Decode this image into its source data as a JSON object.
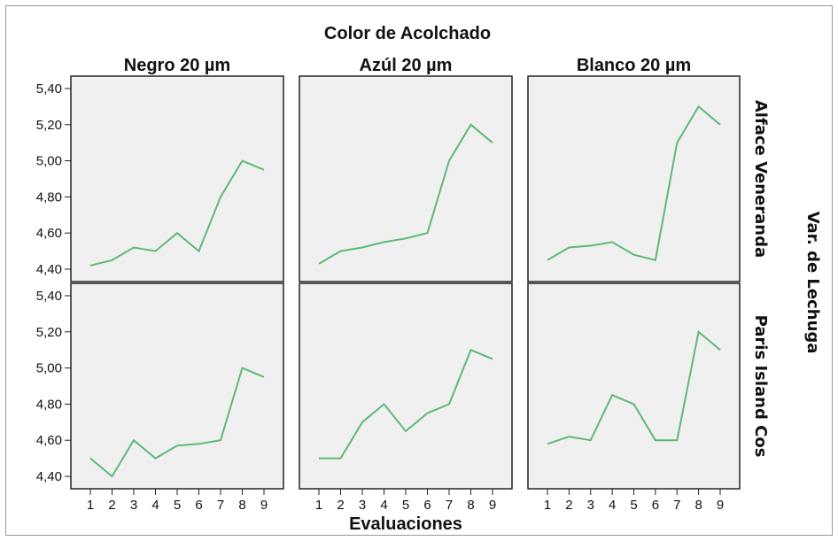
{
  "chart_data": {
    "type": "line",
    "title": "Color de Acolchado",
    "xlabel": "Evaluaciones",
    "right_label": "Var. de Lechuga",
    "columns": [
      "Negro 20 µm",
      "Azúl 20 µm",
      "Blanco 20 µm"
    ],
    "rows": [
      "Alface Veneranda",
      "Paris Island Cos"
    ],
    "x": [
      1,
      2,
      3,
      4,
      5,
      6,
      7,
      8,
      9
    ],
    "x_tick_labels": [
      "1",
      "2",
      "3",
      "4",
      "5",
      "6",
      "7",
      "8",
      "9"
    ],
    "ylim": [
      4.4,
      5.4
    ],
    "y_ticks": [
      4.4,
      4.6,
      4.8,
      5.0,
      5.2,
      5.4
    ],
    "y_tick_labels": [
      "4,40",
      "4,60",
      "4,80",
      "5,00",
      "5,20",
      "5,40"
    ],
    "grid": false,
    "line_color": "#5fb878",
    "panel_background": "#f0f0f0",
    "panels": [
      {
        "row": "Alface Veneranda",
        "column": "Negro 20 µm",
        "values": [
          4.42,
          4.45,
          4.52,
          4.5,
          4.6,
          4.5,
          4.8,
          5.0,
          4.95
        ]
      },
      {
        "row": "Alface Veneranda",
        "column": "Azúl 20 µm",
        "values": [
          4.43,
          4.5,
          4.52,
          4.55,
          4.57,
          4.6,
          5.0,
          5.2,
          5.1
        ]
      },
      {
        "row": "Alface Veneranda",
        "column": "Blanco 20 µm",
        "values": [
          4.45,
          4.52,
          4.53,
          4.55,
          4.48,
          4.45,
          5.1,
          5.3,
          5.2
        ]
      },
      {
        "row": "Paris Island Cos",
        "column": "Negro 20 µm",
        "values": [
          4.5,
          4.4,
          4.6,
          4.5,
          4.57,
          4.58,
          4.6,
          5.0,
          4.95
        ]
      },
      {
        "row": "Paris Island Cos",
        "column": "Azúl 20 µm",
        "values": [
          4.5,
          4.5,
          4.7,
          4.8,
          4.65,
          4.75,
          4.8,
          5.1,
          5.05
        ]
      },
      {
        "row": "Paris Island Cos",
        "column": "Blanco 20 µm",
        "values": [
          4.58,
          4.62,
          4.6,
          4.85,
          4.8,
          4.6,
          4.6,
          5.2,
          5.1
        ]
      }
    ]
  }
}
